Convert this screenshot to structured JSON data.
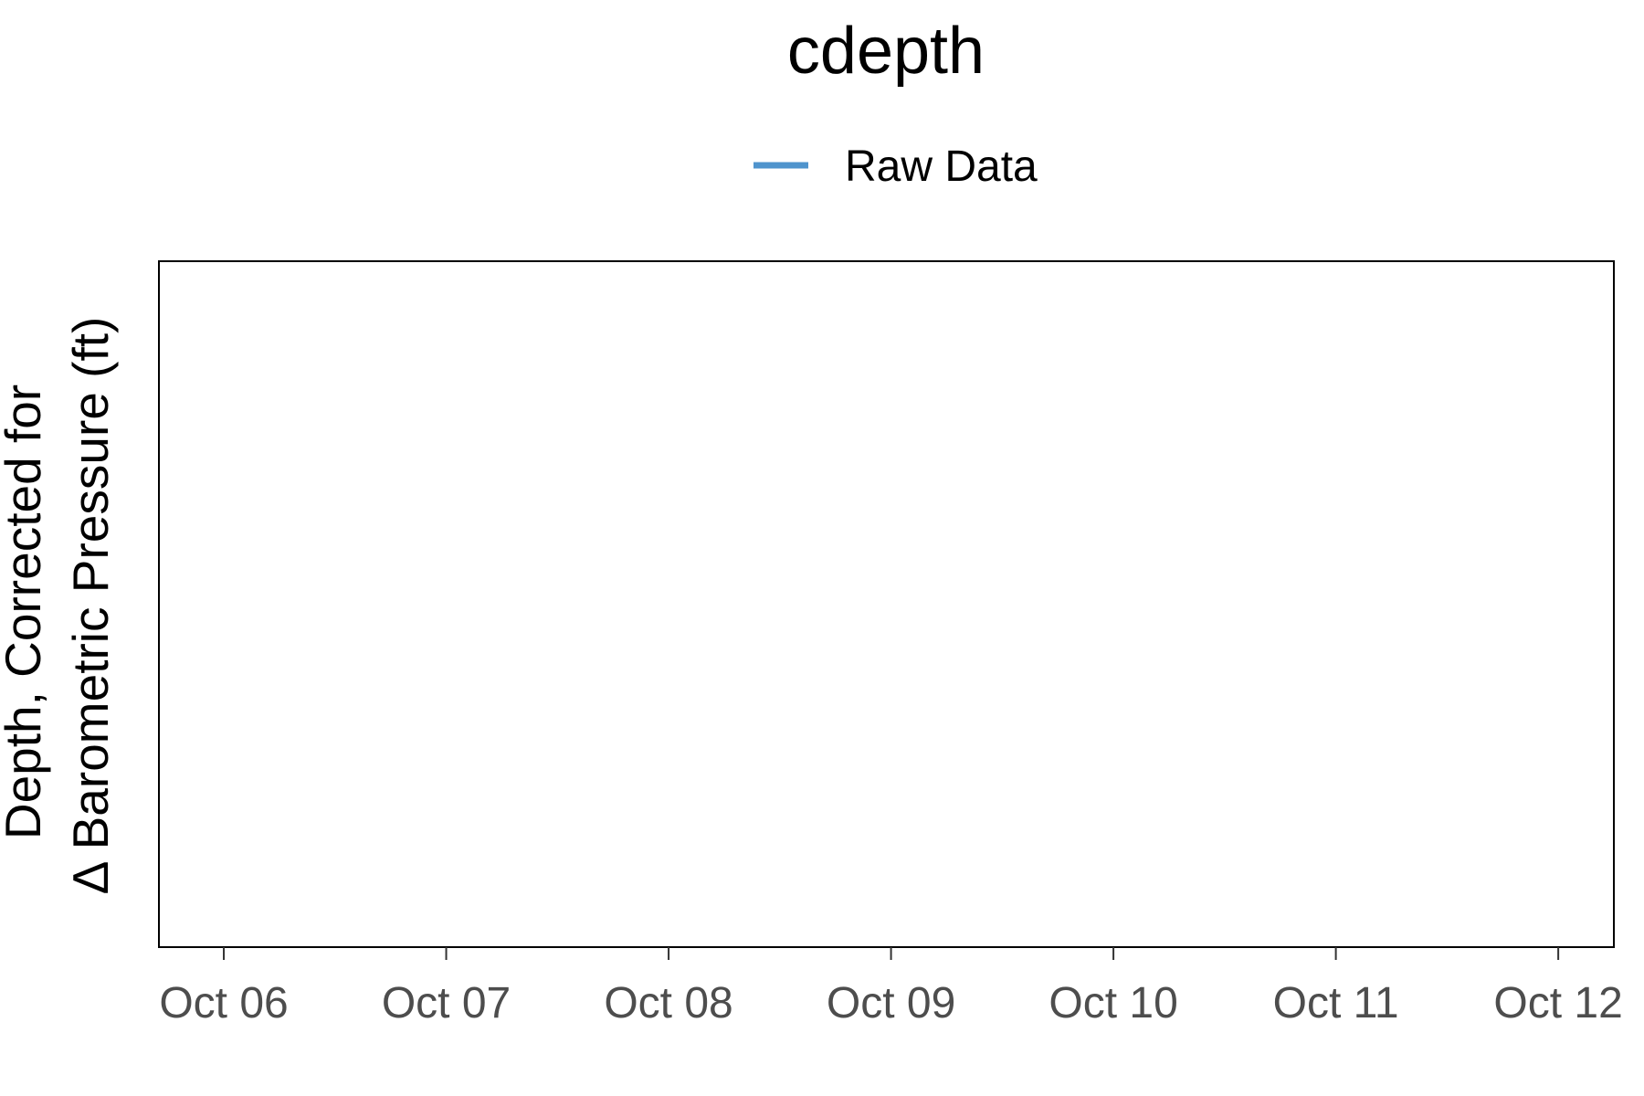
{
  "chart_data": {
    "type": "line",
    "title": "cdepth",
    "ylabel_lines": [
      "Depth, Corrected for",
      "Δ Barometric Pressure (ft)"
    ],
    "xlabel": "",
    "x_ticks": [
      "Oct 06",
      "Oct 07",
      "Oct 08",
      "Oct 09",
      "Oct 10",
      "Oct 11",
      "Oct 12"
    ],
    "xlim": [
      "Oct 05 17:00",
      "Oct 12 06:00"
    ],
    "legend_position": "top",
    "grid": false,
    "series": [
      {
        "name": "Raw Data",
        "color": "#4f94cd",
        "values": []
      }
    ]
  }
}
